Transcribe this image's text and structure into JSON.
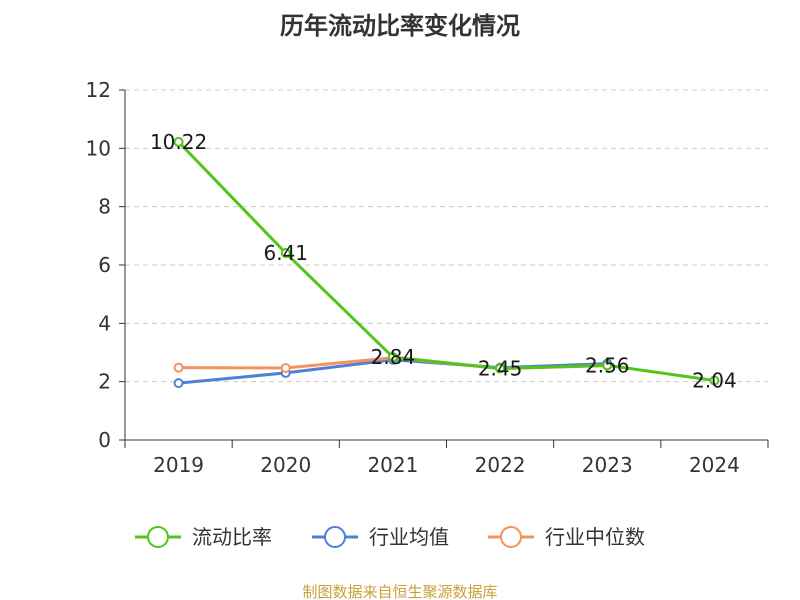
{
  "chart_data": {
    "type": "line",
    "title": "历年流动比率变化情况",
    "categories": [
      "2019",
      "2020",
      "2021",
      "2022",
      "2023",
      "2024"
    ],
    "ylim": [
      0,
      12
    ],
    "yticks": [
      0,
      2,
      4,
      6,
      8,
      10,
      12
    ],
    "grid": true,
    "legend_position": "bottom",
    "series": [
      {
        "name": "流动比率",
        "color": "#52c41a",
        "values": [
          10.22,
          6.41,
          2.84,
          2.45,
          2.56,
          2.04
        ],
        "labels": [
          "10.22",
          "6.41",
          "2.84",
          "2.45",
          "2.56",
          "2.04"
        ]
      },
      {
        "name": "行业均值",
        "color": "#4f7fd6",
        "values": [
          1.95,
          2.3,
          2.75,
          2.48,
          2.62,
          null
        ]
      },
      {
        "name": "行业中位数",
        "color": "#f5935e",
        "values": [
          2.48,
          2.47,
          2.82,
          2.45,
          2.55,
          null
        ]
      }
    ]
  },
  "source_text": "制图数据来自恒生聚源数据库",
  "source_color": "#c8a03c"
}
